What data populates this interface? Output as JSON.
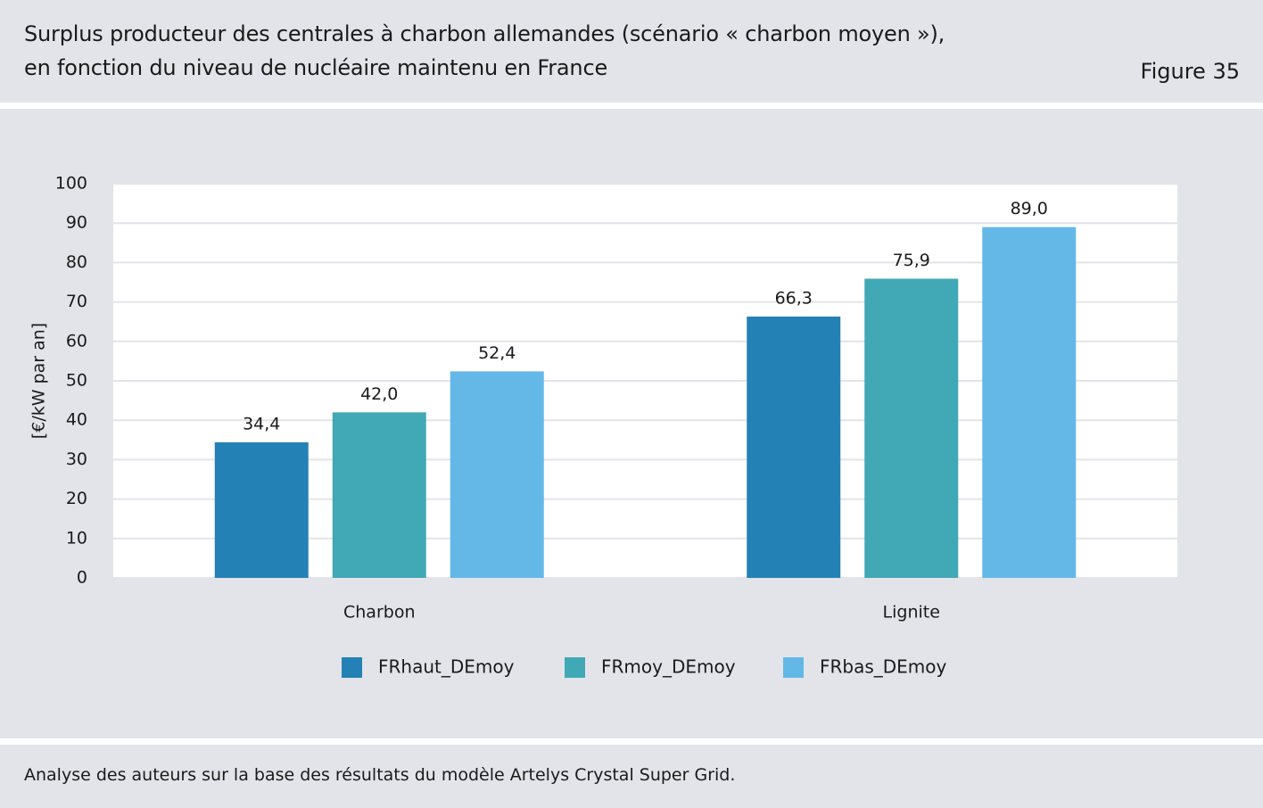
{
  "header": {
    "title_line_1": "Surplus producteur des centrales à charbon allemandes (scénario « charbon moyen »),",
    "title_line_2": "en fonction du niveau de nucléaire maintenu en France",
    "figure_label": "Figure 35"
  },
  "footer": {
    "source": "Analyse des auteurs sur la base des résultats du modèle Artelys Crystal Super Grid."
  },
  "chart_data": {
    "type": "bar",
    "title": "",
    "xlabel": "",
    "ylabel": "[€/kW par an]",
    "ylim": [
      0,
      100
    ],
    "yticks": [
      0,
      10,
      20,
      30,
      40,
      50,
      60,
      70,
      80,
      90,
      100
    ],
    "grid": true,
    "legend_position": "bottom",
    "categories": [
      "Charbon",
      "Lignite"
    ],
    "series": [
      {
        "name": "FRhaut_DEmoy",
        "color": "#2481b5",
        "values": [
          34.4,
          66.3
        ],
        "labels": [
          "34,4",
          "66,3"
        ]
      },
      {
        "name": "FRmoy_DEmoy",
        "color": "#41a8b5",
        "values": [
          42.0,
          75.9
        ],
        "labels": [
          "42,0",
          "75,9"
        ]
      },
      {
        "name": "FRbas_DEmoy",
        "color": "#63b8e8",
        "values": [
          52.4,
          89.0
        ],
        "labels": [
          "52,4",
          "89,0"
        ]
      }
    ]
  }
}
